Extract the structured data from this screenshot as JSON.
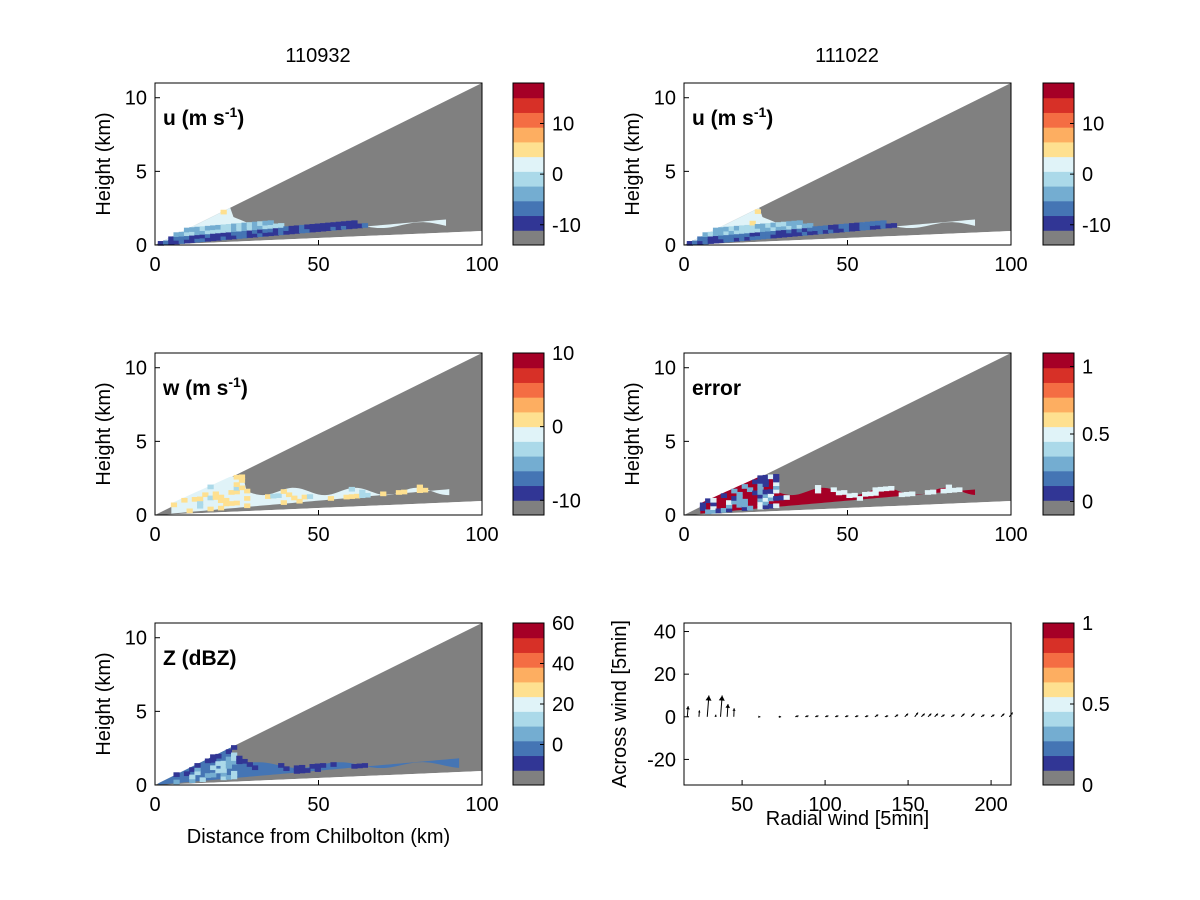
{
  "column_titles": [
    "110932",
    "111022"
  ],
  "panel_x_ticks": [
    "0",
    "50",
    "100"
  ],
  "panel_y_ticks": [
    "0",
    "5",
    "10"
  ],
  "panel_y_label": "Height (km)",
  "x_label_bottom": "Distance from Chilbolton (km)",
  "colors": {
    "nodata": "#808080",
    "colormap": [
      "#313695",
      "#4575b4",
      "#74add1",
      "#abd9e9",
      "#e0f3f8",
      "#fee090",
      "#fdae61",
      "#f46d43",
      "#d73027",
      "#a50026"
    ]
  },
  "chart_data": [
    {
      "type": "heatmap",
      "id": "u-left",
      "column_title": "110932",
      "label_main": "u (m s",
      "label_sup": "-1",
      "label_end": ")",
      "xlabel": "",
      "ylabel": "Height (km)",
      "xlim": [
        0,
        100
      ],
      "ylim": [
        0,
        11
      ],
      "colorbar": {
        "range": [
          -14,
          18
        ],
        "ticks": [
          "10",
          "0",
          "-10"
        ],
        "tick_values": [
          10,
          0,
          -10
        ]
      }
    },
    {
      "type": "heatmap",
      "id": "u-right",
      "column_title": "111022",
      "label_main": "u (m s",
      "label_sup": "-1",
      "label_end": ")",
      "xlabel": "",
      "ylabel": "Height (km)",
      "xlim": [
        0,
        100
      ],
      "ylim": [
        0,
        11
      ],
      "colorbar": {
        "range": [
          -14,
          18
        ],
        "ticks": [
          "10",
          "0",
          "-10"
        ],
        "tick_values": [
          10,
          0,
          -10
        ]
      }
    },
    {
      "type": "heatmap",
      "id": "w-left",
      "label_main": "w (m s",
      "label_sup": "-1",
      "label_end": ")",
      "xlabel": "",
      "ylabel": "Height (km)",
      "xlim": [
        0,
        100
      ],
      "ylim": [
        0,
        11
      ],
      "colorbar": {
        "range": [
          -12,
          10
        ],
        "ticks": [
          "10",
          "0",
          "-10"
        ],
        "tick_values": [
          10,
          0,
          -10
        ]
      }
    },
    {
      "type": "heatmap",
      "id": "error-right",
      "label_main": "error",
      "label_sup": "",
      "label_end": "",
      "xlabel": "",
      "ylabel": "Height (km)",
      "xlim": [
        0,
        100
      ],
      "ylim": [
        0,
        11
      ],
      "colorbar": {
        "range": [
          -0.1,
          1.1
        ],
        "ticks": [
          "1",
          "0.5",
          "0"
        ],
        "tick_values": [
          1,
          0.5,
          0
        ]
      }
    },
    {
      "type": "heatmap",
      "id": "z-left",
      "label_main": "Z (dBZ)",
      "label_sup": "",
      "label_end": "",
      "xlabel": "Distance from Chilbolton (km)",
      "ylabel": "Height (km)",
      "xlim": [
        0,
        100
      ],
      "ylim": [
        0,
        11
      ],
      "colorbar": {
        "range": [
          -20,
          60
        ],
        "ticks": [
          "60",
          "40",
          "20",
          "0"
        ],
        "tick_values": [
          60,
          40,
          20,
          0
        ]
      }
    },
    {
      "type": "scatter",
      "id": "quiver",
      "xlabel": "Radial wind [5min]",
      "ylabel": "Across wind [5min]",
      "xlim": [
        15,
        212
      ],
      "ylim": [
        -32,
        44
      ],
      "x_ticks": [
        "50",
        "100",
        "150",
        "200"
      ],
      "x_tick_values": [
        50,
        100,
        150,
        200
      ],
      "y_ticks": [
        "40",
        "20",
        "0",
        "-20"
      ],
      "y_tick_values": [
        40,
        20,
        0,
        -20
      ],
      "x": [
        17,
        24,
        29,
        34,
        37,
        41,
        45,
        60,
        72,
        82,
        88,
        94,
        100,
        106,
        112,
        118,
        124,
        130,
        136,
        142,
        148,
        154,
        158,
        162,
        166,
        170,
        176,
        182,
        188,
        194,
        200,
        206,
        211
      ],
      "y": [
        0,
        0,
        0,
        0,
        0,
        0,
        0,
        0,
        0,
        0,
        0,
        0,
        0,
        0,
        0,
        0,
        0,
        0,
        0,
        0,
        0,
        0,
        0,
        0,
        0,
        0,
        0,
        0,
        0,
        0,
        0,
        0,
        0
      ],
      "u": [
        0.5,
        0.3,
        1,
        0.2,
        1,
        0.5,
        0.2,
        1,
        1.5,
        2,
        2,
        2,
        2,
        2,
        2,
        2,
        2,
        2,
        2,
        2,
        2,
        2,
        2,
        2,
        2,
        2,
        2,
        2,
        2,
        2,
        2,
        2,
        2
      ],
      "v": [
        5,
        3,
        10,
        1,
        10,
        6,
        4,
        0,
        0,
        0.5,
        0.5,
        0.5,
        0.5,
        0.5,
        0.5,
        0.5,
        0.5,
        1,
        0.5,
        1,
        1.5,
        2,
        1.5,
        1.5,
        1.5,
        1,
        1,
        1.5,
        1.5,
        1,
        1,
        1.5,
        2
      ],
      "colorbar": {
        "range": [
          0,
          1
        ],
        "ticks": [
          "1",
          "0.5",
          "0"
        ],
        "tick_values": [
          1,
          0.5,
          0
        ]
      }
    }
  ]
}
